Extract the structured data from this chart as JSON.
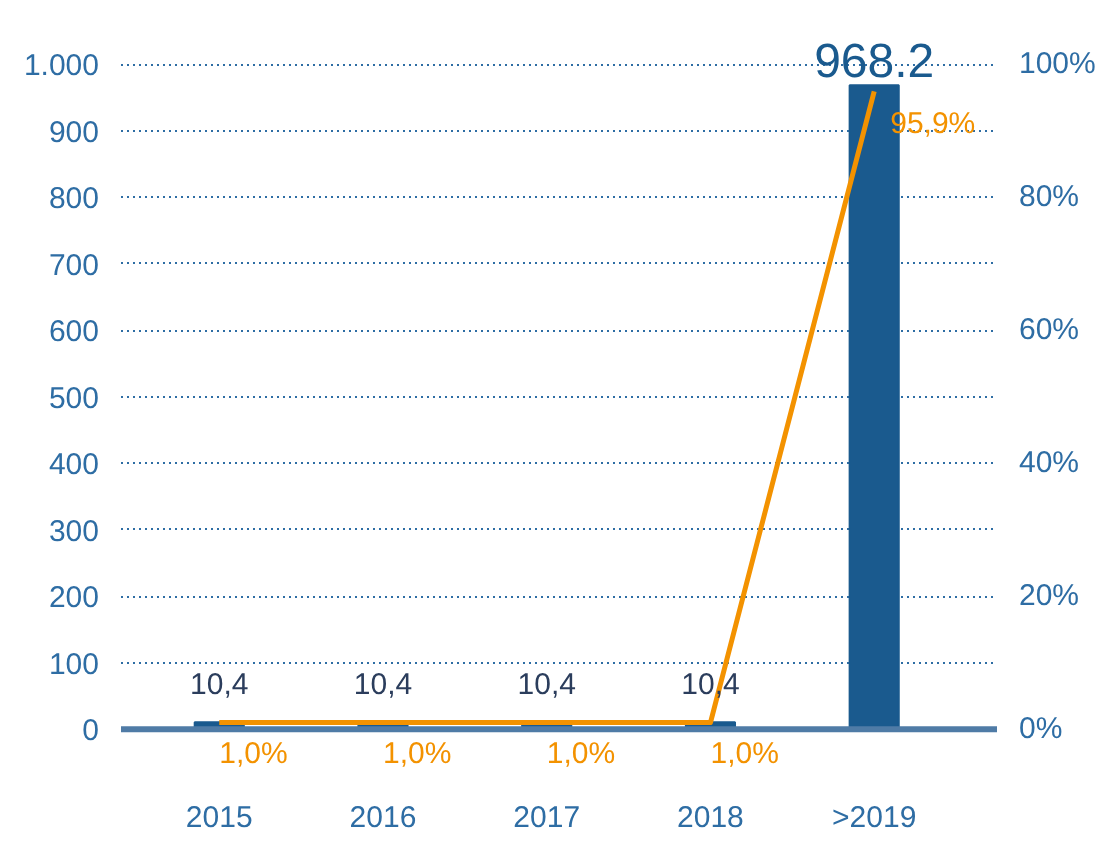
{
  "chart_data": {
    "type": "bar",
    "categories": [
      "2015",
      "2016",
      "2017",
      "2018",
      ">2019"
    ],
    "ylim": [
      0,
      1000
    ],
    "yticks": [
      0,
      100,
      200,
      300,
      400,
      500,
      600,
      700,
      800,
      900,
      {
        "value": 1000,
        "label": "1.000"
      }
    ],
    "y2lim": [
      0,
      100
    ],
    "y2ticks": [
      {
        "value": 0,
        "label": "0%"
      },
      {
        "value": 20,
        "label": "20%"
      },
      {
        "value": 40,
        "label": "40%"
      },
      {
        "value": 60,
        "label": "60%"
      },
      {
        "value": 80,
        "label": "80%"
      },
      {
        "value": 100,
        "label": "100%"
      }
    ],
    "grid": "y",
    "series": [
      {
        "color": "#1a5a8e",
        "values": [
          10.4,
          10.4,
          10.4,
          10.4,
          968.2
        ],
        "value_labels": [
          "10,4",
          "10,4",
          "10,4",
          "10,4",
          "968.2"
        ]
      },
      {
        "type": "line",
        "axis": "y2",
        "color": "#f39200",
        "values": [
          1.0,
          1.0,
          1.0,
          1.0,
          95.9
        ],
        "value_labels": [
          "1,0%",
          "1,0%",
          "1,0%",
          "1,0%",
          "95,9%"
        ]
      }
    ]
  }
}
